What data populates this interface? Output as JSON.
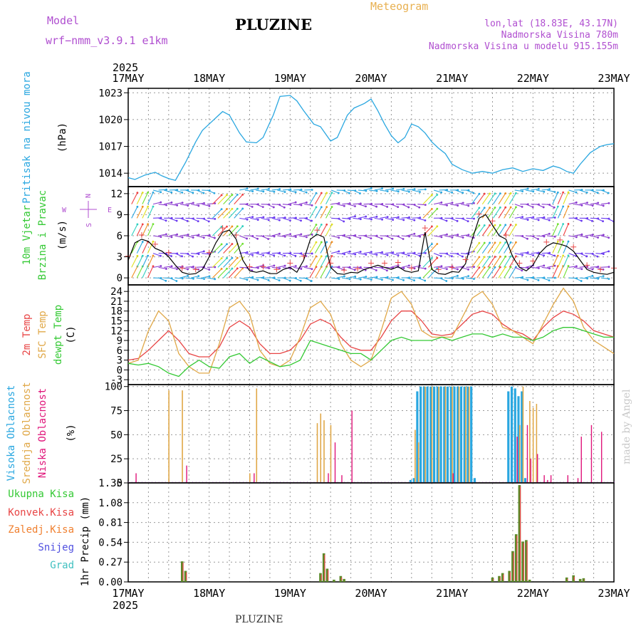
{
  "header": {
    "model_label": "Model",
    "model_name": "wrf−nmm_v3.9.1  e1km",
    "station": "PLUZINE",
    "meteogram_label": "Meteogram",
    "coords": "lon,lat (18.83E, 43.17N)",
    "elevation": "Nadmorska Visina 780m",
    "model_elevation": "Nadmorska Visina u modelu 915.155m"
  },
  "credit": "made by Angel",
  "footer_station": "PLUZINE",
  "chart_data": {
    "type": "line",
    "year": "2025",
    "x_ticks": [
      "17MAY",
      "18MAY",
      "19MAY",
      "20MAY",
      "21MAY",
      "22MAY",
      "23MAY"
    ],
    "x_hours": [
      0,
      144
    ],
    "panels": {
      "pressure": {
        "ylabel": [
          "Pritisak na nivou mora",
          "(hPa)"
        ],
        "ylim": [
          1012.5,
          1023.5
        ],
        "ticks": [
          1014,
          1017,
          1020,
          1023
        ],
        "color": "#2aa7e0",
        "series": {
          "name": "",
          "x": [
            0,
            2,
            5,
            8,
            10,
            12,
            14,
            17,
            20,
            22,
            24,
            26,
            28,
            30,
            33,
            35,
            38,
            40,
            43,
            45,
            48,
            50,
            52,
            55,
            57,
            60,
            62,
            65,
            67,
            70,
            72,
            74,
            76,
            78,
            80,
            82,
            84,
            86,
            88,
            90,
            92,
            94,
            96,
            99,
            102,
            105,
            108,
            111,
            114,
            117,
            120,
            123,
            126,
            128,
            130,
            132,
            134,
            137,
            140,
            142,
            144
          ],
          "y": [
            1013.5,
            1013.3,
            1013.8,
            1014.1,
            1013.7,
            1013.4,
            1013.2,
            1015.2,
            1017.5,
            1018.8,
            1019.5,
            1020.2,
            1020.9,
            1020.5,
            1018.5,
            1017.5,
            1017.4,
            1018.0,
            1020.5,
            1022.6,
            1022.7,
            1022.1,
            1021.0,
            1019.5,
            1019.2,
            1017.6,
            1018.0,
            1020.5,
            1021.3,
            1021.8,
            1022.3,
            1021.0,
            1019.5,
            1018.2,
            1017.4,
            1018.0,
            1019.5,
            1019.2,
            1018.5,
            1017.5,
            1016.8,
            1016.2,
            1015.0,
            1014.4,
            1014.0,
            1014.2,
            1014.0,
            1014.4,
            1014.6,
            1014.2,
            1014.5,
            1014.3,
            1014.8,
            1014.6,
            1014.2,
            1014.0,
            1015.0,
            1016.3,
            1017.0,
            1017.2,
            1017.3
          ]
        }
      },
      "wind": {
        "ylabel": [
          "10m Vjetar",
          "Brzina i Pravac",
          "(m/s)"
        ],
        "compass": [
          "N",
          "S",
          "W",
          "E"
        ],
        "ylim": [
          -1,
          13
        ],
        "ticks": [
          0,
          3,
          6,
          9,
          12
        ],
        "speed": {
          "x": [
            0,
            2,
            4,
            6,
            8,
            10,
            12,
            14,
            16,
            18,
            20,
            22,
            24,
            26,
            28,
            30,
            32,
            34,
            36,
            38,
            40,
            42,
            44,
            46,
            48,
            50,
            52,
            54,
            56,
            58,
            60,
            62,
            64,
            66,
            68,
            70,
            72,
            74,
            76,
            78,
            80,
            82,
            84,
            86,
            88,
            90,
            92,
            94,
            96,
            98,
            100,
            102,
            104,
            106,
            108,
            110,
            112,
            114,
            116,
            118,
            120,
            122,
            124,
            126,
            128,
            130,
            132,
            134,
            136,
            138,
            140,
            142,
            144
          ],
          "y": [
            2.5,
            5.0,
            5.5,
            5.2,
            4.2,
            3.8,
            3.0,
            1.8,
            0.8,
            0.5,
            0.6,
            1.2,
            3.0,
            5.0,
            6.5,
            6.8,
            5.5,
            2.5,
            1.0,
            0.8,
            1.0,
            0.6,
            0.6,
            1.2,
            1.5,
            0.8,
            2.5,
            5.5,
            6.2,
            5.8,
            1.5,
            0.6,
            0.5,
            0.8,
            0.7,
            1.2,
            1.5,
            1.8,
            1.5,
            1.2,
            1.6,
            1.0,
            0.8,
            1.0,
            6.5,
            1.2,
            0.6,
            0.5,
            0.9,
            0.8,
            2.0,
            5.5,
            8.5,
            9.0,
            7.5,
            6.0,
            5.5,
            3.0,
            1.5,
            1.0,
            1.8,
            3.5,
            4.5,
            5.0,
            4.8,
            4.5,
            3.8,
            2.5,
            1.2,
            0.8,
            0.6,
            0.5,
            0.8
          ]
        },
        "speed_color": "#000000",
        "gust_color": "#e84a4a",
        "arrow_rows": [
          0,
          1.5,
          3.5,
          6,
          8.5,
          10.5,
          12.5
        ]
      },
      "temperature": {
        "ylabel": [
          "2m Temp",
          "SFC Temp",
          "dewpt Temp",
          "(C)"
        ],
        "ylim": [
          -4.5,
          26
        ],
        "ticks": [
          -3,
          0,
          3,
          6,
          9,
          12,
          15,
          18,
          21,
          24
        ],
        "series": [
          {
            "name": "2m Temp",
            "color": "#e84545",
            "x": [
              0,
              3,
              6,
              9,
              12,
              15,
              18,
              21,
              24,
              27,
              30,
              33,
              36,
              39,
              42,
              45,
              48,
              51,
              54,
              57,
              60,
              63,
              66,
              69,
              72,
              75,
              78,
              81,
              84,
              87,
              90,
              93,
              96,
              99,
              102,
              105,
              108,
              111,
              114,
              117,
              120,
              123,
              126,
              129,
              132,
              135,
              138,
              141,
              144
            ],
            "y": [
              3,
              3.5,
              6,
              9,
              12,
              9,
              5,
              4,
              4,
              7,
              13,
              15,
              13,
              8,
              5,
              5,
              6,
              9,
              14,
              15.5,
              14,
              10,
              7,
              6,
              6,
              10,
              15,
              18,
              18,
              15,
              11,
              10.5,
              11,
              14,
              17,
              18,
              17,
              14,
              12,
              11,
              9,
              13,
              16,
              18,
              17,
              15,
              12,
              11,
              10
            ]
          },
          {
            "name": "SFC Temp",
            "color": "#e0a848",
            "x": [
              0,
              3,
              6,
              9,
              12,
              15,
              18,
              21,
              24,
              27,
              30,
              33,
              36,
              39,
              42,
              45,
              48,
              51,
              54,
              57,
              60,
              63,
              66,
              69,
              72,
              75,
              78,
              81,
              84,
              87,
              90,
              93,
              96,
              99,
              102,
              105,
              108,
              111,
              114,
              117,
              120,
              123,
              126,
              129,
              132,
              135,
              138,
              141,
              144
            ],
            "y": [
              2,
              3,
              12,
              18,
              15,
              5,
              1,
              -1,
              -1,
              8,
              19,
              21,
              17,
              6,
              2,
              1,
              3,
              10,
              19,
              21,
              17,
              8,
              3,
              1,
              3,
              12,
              22,
              24,
              20,
              12,
              10,
              10,
              10,
              16,
              22,
              24,
              20,
              13,
              12,
              10,
              8,
              14,
              20,
              25,
              21,
              13,
              9,
              7,
              5
            ]
          },
          {
            "name": "dewpt Temp",
            "color": "#34c934",
            "x": [
              0,
              3,
              6,
              9,
              12,
              15,
              18,
              21,
              24,
              27,
              30,
              33,
              36,
              39,
              42,
              45,
              48,
              51,
              54,
              57,
              60,
              63,
              66,
              69,
              72,
              75,
              78,
              81,
              84,
              87,
              90,
              93,
              96,
              99,
              102,
              105,
              108,
              111,
              114,
              117,
              120,
              123,
              126,
              129,
              132,
              135,
              138,
              141,
              144
            ],
            "y": [
              2,
              1.5,
              2,
              1,
              -1,
              -2,
              1,
              3,
              1,
              0.5,
              4,
              5,
              2,
              4,
              2.5,
              1,
              1.5,
              3,
              9,
              8,
              7,
              6,
              5,
              5,
              3,
              6,
              9,
              10,
              9,
              9,
              9,
              10,
              9,
              10,
              11,
              11,
              10,
              11,
              10,
              10,
              9,
              10,
              12,
              13,
              13,
              12,
              11,
              10,
              10
            ]
          }
        ]
      },
      "clouds": {
        "ylabel": [
          "Visoka Oblacnost",
          "Srednja Oblacnost",
          "Niska Oblacnost",
          "(%)"
        ],
        "ylim": [
          0,
          102
        ],
        "ticks": [
          0,
          25,
          50,
          75,
          100
        ],
        "series": [
          {
            "name": "Visoka Oblacnost",
            "color": "#2aa7e0",
            "x": [
              84,
              85,
              86,
              87,
              88,
              89,
              90,
              91,
              92,
              93,
              94,
              95,
              96,
              97,
              98,
              99,
              100,
              101,
              102,
              103,
              113,
              114,
              115,
              116,
              117,
              118
            ],
            "y": [
              3,
              5,
              95,
              100,
              100,
              100,
              100,
              100,
              100,
              100,
              100,
              100,
              100,
              100,
              100,
              100,
              100,
              100,
              100,
              5,
              95,
              100,
              98,
              90,
              95,
              5
            ]
          },
          {
            "name": "Srednja Oblacnost",
            "color": "#e0a848",
            "x": [
              12,
              16,
              36,
              38,
              56,
              57,
              58,
              60,
              85,
              86,
              88,
              90,
              92,
              94,
              96,
              98,
              100,
              101,
              116,
              117,
              119,
              120,
              121
            ],
            "y": [
              96,
              96,
              10,
              98,
              62,
              72,
              65,
              60,
              55,
              42,
              100,
              100,
              100,
              100,
              100,
              100,
              100,
              100,
              60,
              100,
              85,
              78,
              82
            ]
          },
          {
            "name": "Niska Oblacnost",
            "color": "#e0157a",
            "x": [
              2,
              17,
              37,
              59,
              61,
              63,
              66,
              96,
              115,
              118,
              119,
              121,
              123,
              124,
              125,
              130,
              133,
              134,
              137,
              140
            ],
            "y": [
              10,
              18,
              10,
              10,
              42,
              8,
              75,
              10,
              48,
              60,
              25,
              30,
              8,
              3,
              8,
              8,
              5,
              48,
              60,
              53
            ]
          }
        ]
      },
      "precip": {
        "ylabel": [
          "1hr Precip (mm)"
        ],
        "legend": [
          {
            "name": "Ukupna Kisa",
            "color": "#34c934"
          },
          {
            "name": "Konvek.Kisa",
            "color": "#e84545"
          },
          {
            "name": "Zaledj.Kisa",
            "color": "#f08030"
          },
          {
            "name": "Snijeg",
            "color": "#5050e0"
          },
          {
            "name": "Grad",
            "color": "#40c0c0"
          }
        ],
        "ylim": [
          0,
          1.35
        ],
        "ticks": [
          0,
          0.27,
          0.54,
          0.81,
          1.08,
          1.35
        ],
        "bars": {
          "x": [
            16,
            17,
            57,
            58,
            59,
            61,
            63,
            64,
            108,
            110,
            111,
            113,
            114,
            115,
            116,
            117,
            118,
            119,
            130,
            132,
            134,
            135
          ],
          "y": [
            0.28,
            0.15,
            0.12,
            0.39,
            0.18,
            0.03,
            0.08,
            0.04,
            0.06,
            0.08,
            0.12,
            0.15,
            0.42,
            0.65,
            1.32,
            0.55,
            0.57,
            0.03,
            0.06,
            0.09,
            0.04,
            0.05
          ]
        },
        "bar_fill": "#5d8a2a",
        "bar_top": "#e84545"
      }
    }
  }
}
